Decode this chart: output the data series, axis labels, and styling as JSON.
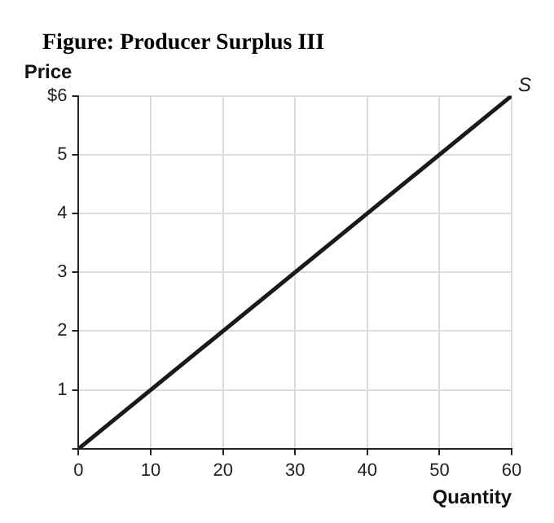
{
  "chart_data": {
    "type": "line",
    "title": "Figure: Producer Surplus III",
    "xlabel": "Quantity",
    "ylabel": "Price",
    "x": [
      0,
      60
    ],
    "series": [
      {
        "name": "S",
        "color": "#1a1a1a",
        "values": [
          0,
          6
        ]
      }
    ],
    "xlim": [
      0,
      60
    ],
    "xticks": [
      0,
      10,
      20,
      30,
      40,
      50,
      60
    ],
    "ylim": [
      0,
      6
    ],
    "yticks": [
      {
        "value": 0,
        "label": null
      },
      1,
      2,
      3,
      4,
      5,
      {
        "value": 6,
        "label": "$6"
      }
    ],
    "grid": true,
    "legend": false,
    "marker": "none",
    "line_style": "solid"
  }
}
